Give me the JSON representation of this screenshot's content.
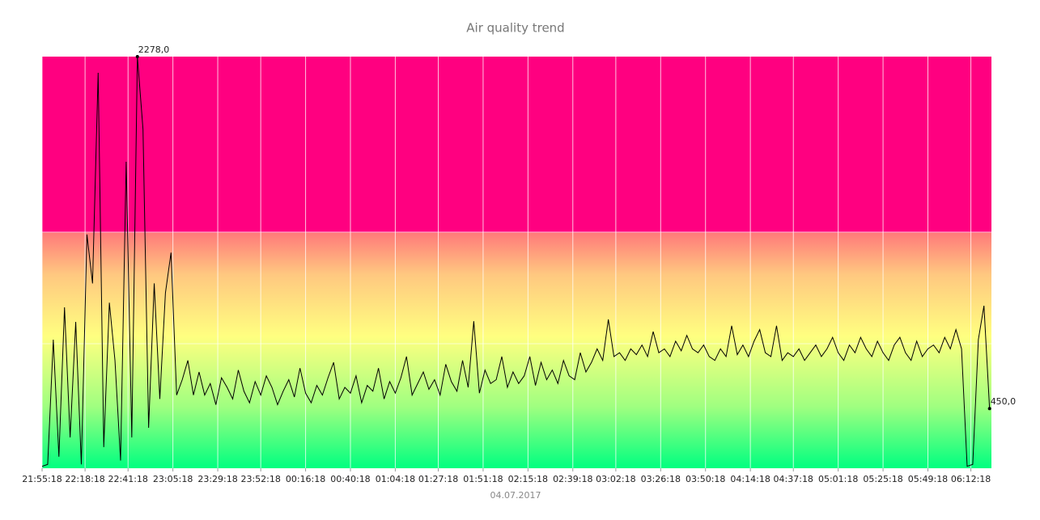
{
  "chart_data": {
    "type": "line",
    "title": "Air quality trend",
    "xlabel": "04.07.2017",
    "x": [
      0,
      3,
      6,
      9,
      12,
      15,
      18,
      21,
      24,
      27,
      30,
      33,
      36,
      39,
      42,
      45,
      48,
      51,
      54,
      57,
      60,
      63,
      66,
      69,
      72,
      75,
      78,
      81,
      84,
      87,
      90,
      93,
      96,
      99,
      102,
      105,
      108,
      111,
      114,
      117,
      120,
      123,
      126,
      129,
      132,
      135,
      138,
      141,
      144,
      147,
      150,
      153,
      156,
      159,
      162,
      165,
      168,
      171,
      174,
      177,
      180,
      183,
      186,
      189,
      192,
      195,
      198,
      201,
      204,
      207,
      210,
      213,
      216,
      219,
      222,
      225,
      228,
      231,
      234,
      237,
      240,
      243,
      246,
      249,
      252,
      255,
      258,
      261,
      264,
      267,
      270,
      273,
      276,
      279,
      282,
      285,
      288,
      291,
      294,
      297,
      300,
      303,
      306,
      309,
      312,
      315,
      318,
      321,
      324,
      327,
      330,
      333,
      336,
      339,
      342,
      345,
      348,
      351,
      354,
      357,
      360,
      363,
      366,
      369,
      372,
      375,
      378,
      381,
      384,
      387,
      390,
      393,
      396,
      399,
      402,
      405,
      408,
      411,
      414,
      417,
      420,
      423,
      426,
      429,
      432,
      435,
      438,
      441,
      444,
      447,
      450,
      453,
      456,
      459,
      462,
      465,
      468,
      471,
      474,
      477,
      480,
      483,
      486,
      489,
      492,
      495,
      498,
      501,
      504,
      507
    ],
    "values": [
      150,
      160,
      808,
      200,
      976,
      300,
      900,
      160,
      1354,
      1100,
      2194,
      250,
      1000,
      700,
      180,
      1732,
      300,
      2278,
      1900,
      350,
      1100,
      500,
      1050,
      1260,
      520,
      600,
      700,
      520,
      640,
      520,
      580,
      470,
      610,
      560,
      500,
      650,
      540,
      480,
      590,
      520,
      620,
      560,
      470,
      540,
      600,
      510,
      660,
      530,
      480,
      570,
      520,
      610,
      690,
      500,
      560,
      530,
      620,
      480,
      570,
      540,
      660,
      500,
      590,
      530,
      610,
      720,
      520,
      580,
      640,
      550,
      600,
      520,
      680,
      590,
      540,
      700,
      560,
      904,
      530,
      650,
      580,
      600,
      720,
      560,
      640,
      580,
      620,
      720,
      570,
      690,
      600,
      650,
      580,
      700,
      620,
      600,
      740,
      640,
      690,
      760,
      700,
      913,
      720,
      740,
      700,
      760,
      730,
      780,
      720,
      850,
      740,
      760,
      720,
      800,
      750,
      830,
      760,
      740,
      780,
      720,
      700,
      760,
      720,
      880,
      730,
      780,
      720,
      800,
      860,
      740,
      720,
      880,
      700,
      740,
      720,
      760,
      700,
      740,
      780,
      720,
      760,
      820,
      740,
      700,
      780,
      740,
      820,
      760,
      720,
      800,
      740,
      700,
      780,
      820,
      740,
      700,
      800,
      720,
      760,
      780,
      740,
      820,
      760,
      860,
      760,
      150,
      160,
      808,
      984,
      450
    ],
    "value_labels": [
      null,
      null,
      null,
      null,
      null,
      null,
      null,
      null,
      null,
      null,
      null,
      null,
      null,
      null,
      null,
      null,
      null,
      "2278,0",
      null,
      null,
      null,
      null,
      null,
      null,
      null,
      null,
      null,
      null,
      null,
      null,
      null,
      null,
      null,
      null,
      null,
      null,
      null,
      null,
      null,
      null,
      null,
      null,
      null,
      null,
      null,
      null,
      null,
      null,
      null,
      null,
      null,
      null,
      null,
      null,
      null,
      null,
      null,
      null,
      null,
      null,
      null,
      null,
      null,
      null,
      null,
      null,
      null,
      null,
      null,
      null,
      null,
      null,
      null,
      null,
      null,
      null,
      null,
      null,
      null,
      null,
      null,
      null,
      null,
      null,
      null,
      null,
      null,
      null,
      null,
      null,
      null,
      null,
      null,
      null,
      null,
      null,
      null,
      null,
      null,
      null,
      null,
      null,
      null,
      null,
      null,
      null,
      null,
      null,
      null,
      null,
      null,
      null,
      null,
      null,
      null,
      null,
      null,
      null,
      null,
      null,
      null,
      null,
      null,
      null,
      null,
      null,
      null,
      null,
      null,
      null,
      null,
      null,
      null,
      null,
      null,
      null,
      null,
      null,
      null,
      null,
      null,
      null,
      null,
      null,
      null,
      null,
      null,
      null,
      null,
      null,
      null,
      null,
      null,
      null,
      null,
      null,
      null,
      null,
      null,
      null,
      null,
      null,
      null,
      null,
      null,
      null,
      null,
      null,
      null,
      "450,0"
    ],
    "color": "#000000",
    "xlim": [
      0,
      508
    ],
    "ylim": [
      140,
      2278
    ],
    "xticks": [
      {
        "value": 0,
        "label": "21:55:18"
      },
      {
        "value": 23,
        "label": "22:18:18"
      },
      {
        "value": 46,
        "label": "22:41:18"
      },
      {
        "value": 70,
        "label": "23:05:18"
      },
      {
        "value": 94,
        "label": "23:29:18"
      },
      {
        "value": 117,
        "label": "23:52:18"
      },
      {
        "value": 141,
        "label": "00:16:18"
      },
      {
        "value": 165,
        "label": "00:40:18"
      },
      {
        "value": 189,
        "label": "01:04:18"
      },
      {
        "value": 212,
        "label": "01:27:18"
      },
      {
        "value": 236,
        "label": "01:51:18"
      },
      {
        "value": 260,
        "label": "02:15:18"
      },
      {
        "value": 284,
        "label": "02:39:18"
      },
      {
        "value": 307,
        "label": "03:02:18"
      },
      {
        "value": 331,
        "label": "03:26:18"
      },
      {
        "value": 355,
        "label": "03:50:18"
      },
      {
        "value": 379,
        "label": "04:14:18"
      },
      {
        "value": 402,
        "label": "04:37:18"
      },
      {
        "value": 426,
        "label": "05:01:18"
      },
      {
        "value": 450,
        "label": "05:25:18"
      },
      {
        "value": 474,
        "label": "05:49:18"
      },
      {
        "value": 497,
        "label": "06:12:18"
      }
    ],
    "grid": true
  }
}
